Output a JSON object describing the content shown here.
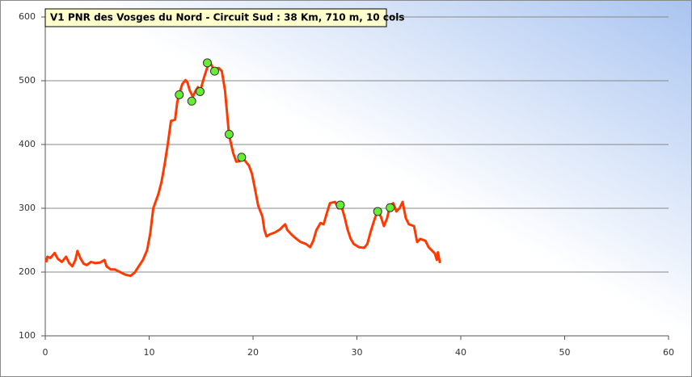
{
  "chart_data": {
    "type": "line",
    "title": "V1 PNR des Vosges du Nord - Circuit Sud : 38 Km, 710 m, 10 cols",
    "x": [
      0.08,
      0.2,
      0.5,
      0.9,
      1.2,
      1.6,
      2.0,
      2.3,
      2.6,
      2.9,
      3.1,
      3.4,
      3.7,
      4.0,
      4.4,
      4.8,
      5.3,
      5.7,
      5.9,
      6.3,
      6.7,
      7.2,
      7.7,
      8.2,
      8.6,
      9.0,
      9.4,
      9.8,
      10.1,
      10.4,
      10.9,
      11.2,
      11.5,
      11.8,
      12.1,
      12.5,
      12.7,
      12.9,
      13.2,
      13.5,
      13.7,
      13.9,
      14.2,
      14.5,
      14.7,
      14.9,
      15.3,
      15.6,
      15.9,
      16.2,
      16.7,
      17.0,
      17.3,
      17.5,
      17.7,
      18.1,
      18.4,
      18.7,
      19.0,
      19.3,
      19.6,
      19.9,
      20.2,
      20.5,
      20.9,
      21.1,
      21.3,
      21.6,
      22.1,
      22.6,
      22.9,
      23.1,
      23.3,
      23.7,
      24.1,
      24.6,
      25.1,
      25.5,
      25.8,
      26.1,
      26.5,
      26.8,
      27.1,
      27.4,
      27.9,
      28.2,
      28.5,
      28.8,
      29.1,
      29.4,
      29.7,
      30.2,
      30.7,
      31.0,
      31.3,
      31.6,
      32.0,
      32.3,
      32.6,
      32.9,
      33.2,
      33.5,
      33.8,
      34.1,
      34.4,
      34.7,
      35.0,
      35.5,
      35.8,
      36.1,
      36.6,
      36.9,
      37.2,
      37.5,
      37.7,
      37.8,
      38.0
    ],
    "values": [
      215,
      224,
      222,
      230,
      221,
      216,
      224,
      214,
      209,
      219,
      233,
      221,
      213,
      211,
      216,
      214,
      215,
      219,
      209,
      204,
      204,
      200,
      196,
      194,
      199,
      209,
      219,
      234,
      260,
      300,
      323,
      342,
      370,
      401,
      437,
      439,
      466,
      480,
      495,
      501,
      497,
      485,
      475,
      485,
      490,
      483,
      506,
      521,
      528,
      518,
      520,
      515,
      485,
      449,
      414,
      386,
      373,
      374,
      380,
      373,
      367,
      354,
      329,
      304,
      287,
      266,
      256,
      259,
      262,
      267,
      272,
      275,
      266,
      259,
      253,
      247,
      244,
      239,
      249,
      266,
      277,
      275,
      292,
      308,
      310,
      300,
      304,
      287,
      267,
      252,
      244,
      239,
      238,
      244,
      262,
      278,
      297,
      287,
      272,
      284,
      305,
      308,
      295,
      300,
      310,
      285,
      275,
      272,
      247,
      252,
      249,
      239,
      234,
      229,
      219,
      231,
      214
    ],
    "color": "#ff3a00",
    "markers": {
      "x": [
        12.9,
        14.1,
        14.9,
        15.6,
        16.3,
        17.7,
        18.9,
        28.4,
        32.0,
        33.2
      ],
      "values": [
        478,
        468,
        483,
        528,
        515,
        416,
        380,
        305,
        295,
        301
      ],
      "color": "#66ee33"
    },
    "xlim": [
      0,
      60
    ],
    "ylim": [
      100,
      600
    ],
    "xticks": [
      0,
      10,
      20,
      30,
      40,
      50,
      60
    ],
    "yticks": [
      100,
      200,
      300,
      400,
      500,
      600
    ],
    "grid": true
  }
}
